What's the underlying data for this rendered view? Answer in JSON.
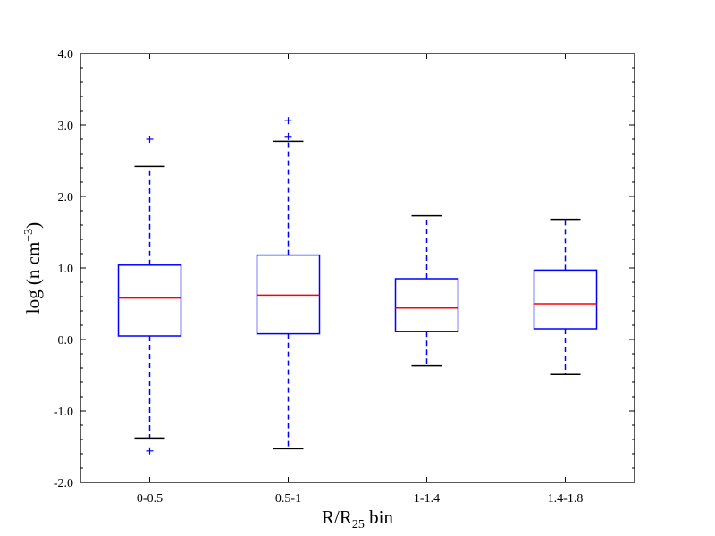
{
  "chart_data": {
    "type": "boxplot",
    "title": "",
    "xlabel": "R/R",
    "xlabel_sub": "25",
    "xlabel_suffix": " bin",
    "ylabel": "log (n cm",
    "ylabel_sup": "−3",
    "ylabel_suffix": ")",
    "ylim": [
      -2.0,
      4.0
    ],
    "yticks": [
      -2.0,
      -1.0,
      0.0,
      1.0,
      2.0,
      3.0,
      4.0
    ],
    "ytick_labels": [
      "-2.0",
      "-1.0",
      "0.0",
      "1.0",
      "2.0",
      "3.0",
      "4.0"
    ],
    "categories": [
      "0-0.5",
      "0.5-1",
      "1-1.4",
      "1.4-1.8"
    ],
    "boxes": [
      {
        "q1": 0.05,
        "median": 0.58,
        "q3": 1.04,
        "whisker_low": -1.38,
        "whisker_high": 2.42,
        "outliers": [
          2.8,
          -1.56
        ]
      },
      {
        "q1": 0.08,
        "median": 0.62,
        "q3": 1.18,
        "whisker_low": -1.53,
        "whisker_high": 2.77,
        "outliers": [
          2.84,
          3.06
        ]
      },
      {
        "q1": 0.11,
        "median": 0.44,
        "q3": 0.85,
        "whisker_low": -0.37,
        "whisker_high": 1.73,
        "outliers": []
      },
      {
        "q1": 0.15,
        "median": 0.5,
        "q3": 0.97,
        "whisker_low": -0.49,
        "whisker_high": 1.68,
        "outliers": []
      }
    ],
    "colors": {
      "box": "#0000ff",
      "median": "#ff0000",
      "whisker": "#0000ff",
      "cap": "#000000",
      "outlier": "#0000ff"
    },
    "grid": false,
    "legend": "none"
  }
}
